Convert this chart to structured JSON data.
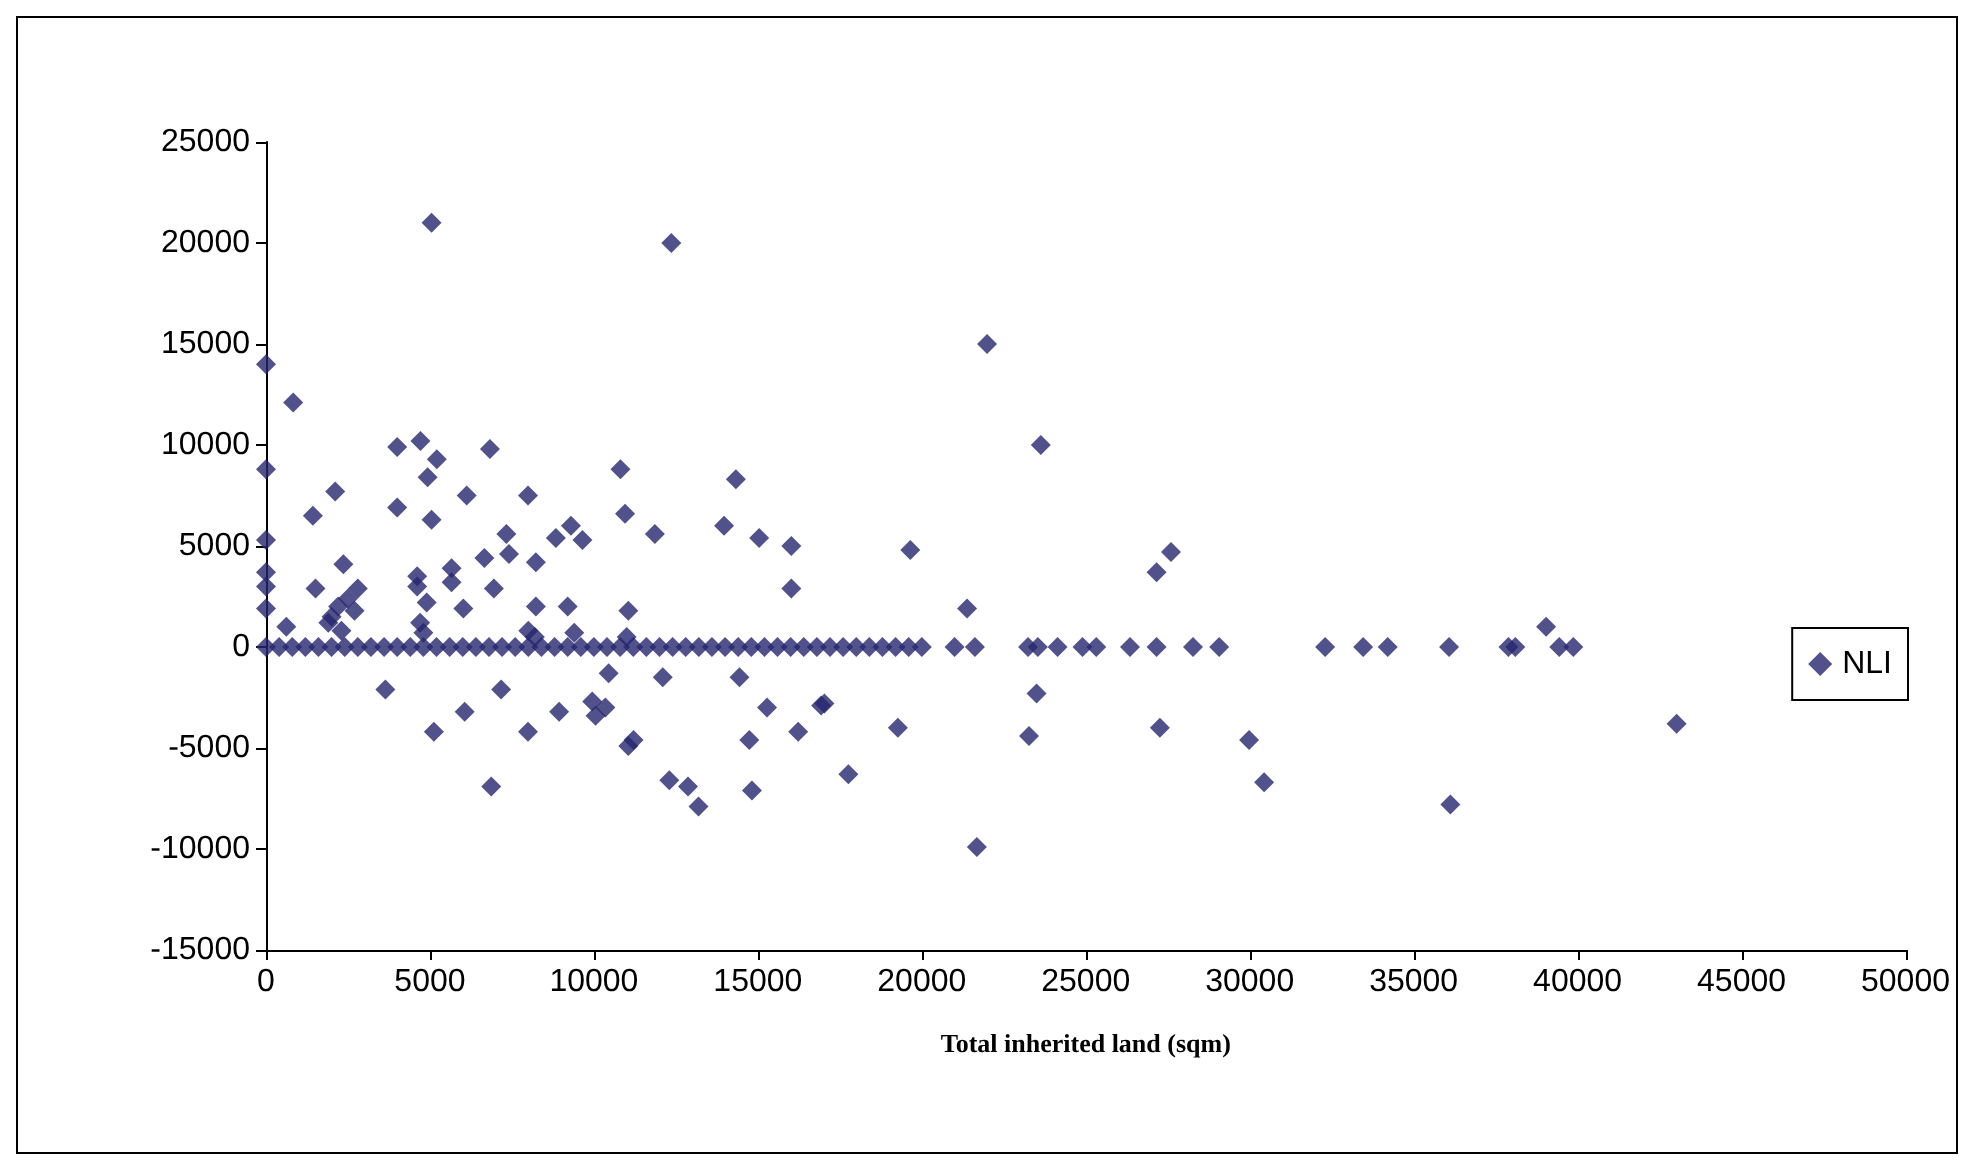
{
  "chart_data": {
    "type": "scatter",
    "xlabel": "Total inherited land (sqm)",
    "xlim": [
      0,
      50000
    ],
    "xticks": [
      0,
      5000,
      10000,
      15000,
      20000,
      25000,
      30000,
      35000,
      40000,
      45000,
      50000
    ],
    "ylim": [
      -15000,
      25000
    ],
    "yticks": [
      -15000,
      -10000,
      -5000,
      0,
      5000,
      10000,
      15000,
      20000,
      25000
    ],
    "grid": false,
    "legend": "right",
    "marker": "diamond",
    "series": [
      {
        "name": "NLI",
        "color": "#25256e",
        "x": [
          5050,
          12360,
          0,
          830,
          0,
          4000,
          4710,
          5210,
          4930,
          6830,
          2110,
          1430,
          4000,
          5050,
          6120,
          7990,
          10810,
          14330,
          10950,
          11860,
          13970,
          15040,
          16020,
          16020,
          0,
          0,
          0,
          0,
          620,
          2360,
          1510,
          2800,
          4610,
          4610,
          5660,
          5660,
          6020,
          6660,
          7330,
          7410,
          6950,
          8230,
          8230,
          8840,
          9300,
          9650,
          9200,
          11050,
          9400,
          2000,
          2300,
          2500,
          2200,
          1900,
          2700,
          4700,
          4900,
          4800,
          8000,
          8200,
          11000,
          3640,
          7170,
          10450,
          12100,
          14440,
          6060,
          5120,
          7990,
          8940,
          9950,
          10350,
          10050,
          15280,
          16930,
          14740,
          16230,
          11050,
          11210,
          6870,
          12300,
          12870,
          13190,
          14820,
          21990,
          23630,
          19650,
          21380,
          27600,
          27160,
          23500,
          17030,
          17760,
          19270,
          23270,
          27260,
          29980,
          30440,
          39040,
          43020,
          36120,
          21680,
          0,
          400,
          800,
          1200,
          1600,
          2000,
          2400,
          2800,
          3200,
          3600,
          4000,
          4400,
          4800,
          5200,
          5600,
          6000,
          6400,
          6800,
          7200,
          7600,
          8000,
          8400,
          8800,
          9200,
          9600,
          10000,
          10400,
          10800,
          11200,
          11600,
          12000,
          12400,
          12800,
          13200,
          13600,
          14000,
          14400,
          14800,
          15200,
          15600,
          16000,
          16400,
          16800,
          17200,
          17600,
          18000,
          18400,
          18800,
          19200,
          19600,
          20000,
          21000,
          21620,
          23240,
          23540,
          24140,
          24900,
          25320,
          26350,
          27160,
          28270,
          29070,
          32300,
          33460,
          34210,
          36080,
          37890,
          38100,
          39440,
          39870
        ],
        "values": [
          21000,
          20000,
          14000,
          12100,
          8800,
          9900,
          10200,
          9300,
          8400,
          9800,
          7700,
          6500,
          6900,
          6300,
          7500,
          7500,
          8800,
          8300,
          6600,
          5600,
          6000,
          5400,
          5000,
          2900,
          5300,
          3700,
          3000,
          1900,
          1000,
          4100,
          2900,
          2900,
          3500,
          3000,
          3900,
          3200,
          1900,
          4400,
          5600,
          4600,
          2900,
          4200,
          2000,
          5400,
          6000,
          5300,
          2000,
          1800,
          700,
          1500,
          800,
          2400,
          2000,
          1200,
          1800,
          1200,
          2200,
          700,
          800,
          500,
          500,
          -2100,
          -2100,
          -1300,
          -1500,
          -1500,
          -3200,
          -4200,
          -4200,
          -3200,
          -2700,
          -3000,
          -3400,
          -3000,
          -2900,
          -4600,
          -4200,
          -4900,
          -4600,
          -6900,
          -6600,
          -6900,
          -7900,
          -7100,
          15000,
          10000,
          4800,
          1900,
          4700,
          3700,
          -2300,
          -2800,
          -6300,
          -4000,
          -4400,
          -4000,
          -4600,
          -6700,
          1000,
          -3800,
          -7800,
          -9900,
          0,
          0,
          0,
          0,
          0,
          0,
          0,
          0,
          0,
          0,
          0,
          0,
          0,
          0,
          0,
          0,
          0,
          0,
          0,
          0,
          0,
          0,
          0,
          0,
          0,
          0,
          0,
          0,
          0,
          0,
          0,
          0,
          0,
          0,
          0,
          0,
          0,
          0,
          0,
          0,
          0,
          0,
          0,
          0,
          0,
          0,
          0,
          0,
          0,
          0,
          0,
          0,
          0,
          0,
          0,
          0,
          0,
          0,
          0,
          0,
          0,
          0,
          0,
          0,
          0,
          0,
          0,
          0,
          0,
          0
        ]
      }
    ]
  }
}
